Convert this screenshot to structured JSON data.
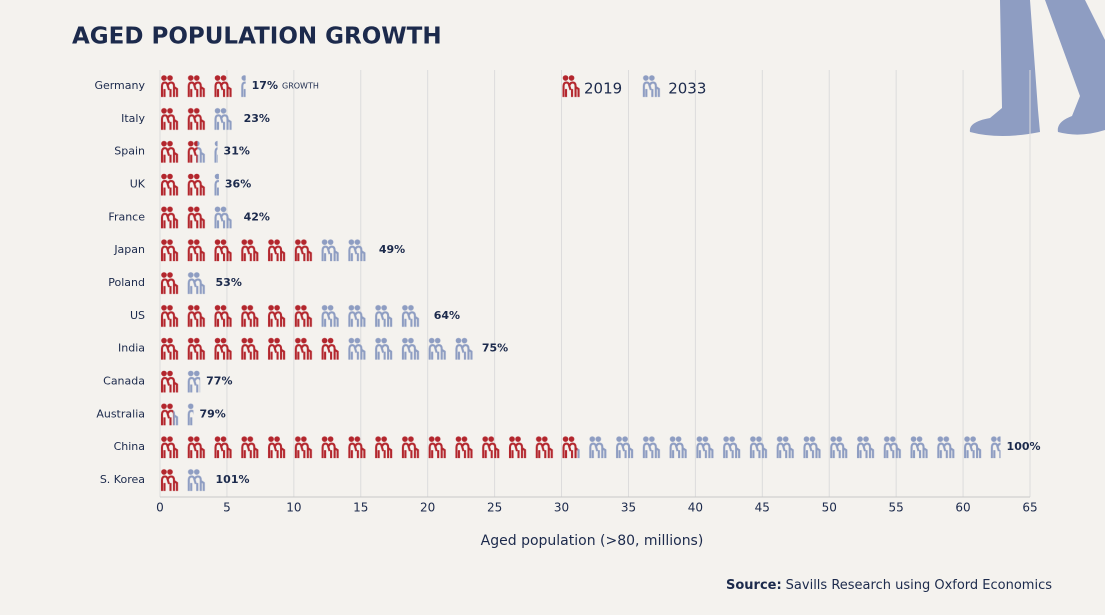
{
  "chart_data": {
    "type": "bar",
    "title": "AGED POPULATION GROWTH",
    "x_label": "Aged population (>80, millions)",
    "categories": [
      "Germany",
      "Italy",
      "Spain",
      "UK",
      "France",
      "Japan",
      "Poland",
      "US",
      "India",
      "Canada",
      "Australia",
      "China",
      "S. Korea"
    ],
    "series": [
      {
        "name": "2019",
        "color": "#b3262d",
        "values": [
          5.6,
          3.9,
          2.8,
          3.4,
          3.9,
          11.9,
          1.7,
          11.9,
          13.6,
          1.5,
          1.0,
          31.2,
          1.7
        ]
      },
      {
        "name": "2033",
        "color": "#8e9dc2",
        "values": [
          6.4,
          5.8,
          4.3,
          4.4,
          5.8,
          15.9,
          3.7,
          20.0,
          23.6,
          3.0,
          2.5,
          62.8,
          3.7
        ]
      }
    ],
    "growth": {
      "values": [
        17,
        23,
        31,
        36,
        42,
        49,
        53,
        64,
        75,
        77,
        79,
        100,
        101
      ],
      "value_labels": [
        "17%",
        "23%",
        "31%",
        "36%",
        "42%",
        "49%",
        "53%",
        "64%",
        "75%",
        "77%",
        "79%",
        "100%",
        "101%"
      ],
      "note": "GROWTH"
    },
    "xlim": [
      0,
      65
    ],
    "xticks": [
      0,
      5,
      10,
      15,
      20,
      25,
      30,
      35,
      40,
      45,
      50,
      55,
      60,
      65
    ],
    "grid": true,
    "source_label": "Source:",
    "source": "Savills Research using Oxford Economics"
  }
}
